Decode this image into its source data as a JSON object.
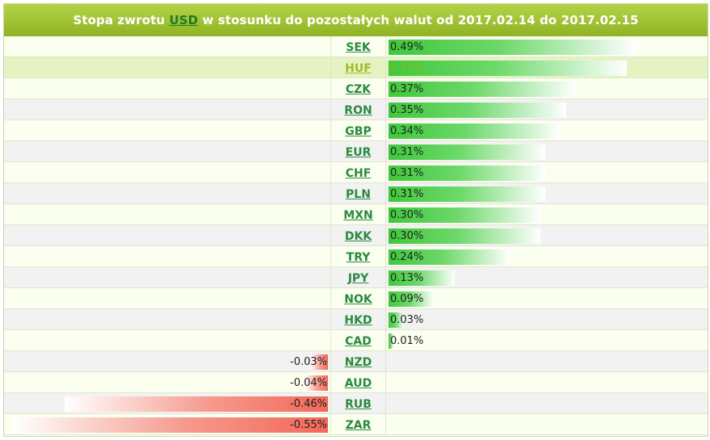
{
  "header": {
    "prefix": "Stopa zwrotu ",
    "base_currency": "USD",
    "suffix": " w stosunku do pozostałych walut od 2017.02.14 do 2017.02.15"
  },
  "colors": {
    "positive": "#3fc83c",
    "negative": "#f2685a",
    "header": "#9cc032"
  },
  "rows": [
    {
      "code": "SEK",
      "value": "0.49%",
      "pct": 0.49
    },
    {
      "code": "HUF",
      "value": "0.47%",
      "pct": 0.47,
      "highlight": true
    },
    {
      "code": "CZK",
      "value": "0.37%",
      "pct": 0.37
    },
    {
      "code": "RON",
      "value": "0.35%",
      "pct": 0.35
    },
    {
      "code": "GBP",
      "value": "0.34%",
      "pct": 0.34
    },
    {
      "code": "EUR",
      "value": "0.31%",
      "pct": 0.31
    },
    {
      "code": "CHF",
      "value": "0.31%",
      "pct": 0.31
    },
    {
      "code": "PLN",
      "value": "0.31%",
      "pct": 0.31
    },
    {
      "code": "MXN",
      "value": "0.30%",
      "pct": 0.3
    },
    {
      "code": "DKK",
      "value": "0.30%",
      "pct": 0.3
    },
    {
      "code": "TRY",
      "value": "0.24%",
      "pct": 0.24
    },
    {
      "code": "JPY",
      "value": "0.13%",
      "pct": 0.13
    },
    {
      "code": "NOK",
      "value": "0.09%",
      "pct": 0.09
    },
    {
      "code": "HKD",
      "value": "0.03%",
      "pct": 0.03
    },
    {
      "code": "CAD",
      "value": "0.01%",
      "pct": 0.01
    },
    {
      "code": "NZD",
      "value": "-0.03%",
      "pct": -0.03
    },
    {
      "code": "AUD",
      "value": "-0.04%",
      "pct": -0.04
    },
    {
      "code": "RUB",
      "value": "-0.46%",
      "pct": -0.46
    },
    {
      "code": "ZAR",
      "value": "-0.55%",
      "pct": -0.55
    }
  ]
}
